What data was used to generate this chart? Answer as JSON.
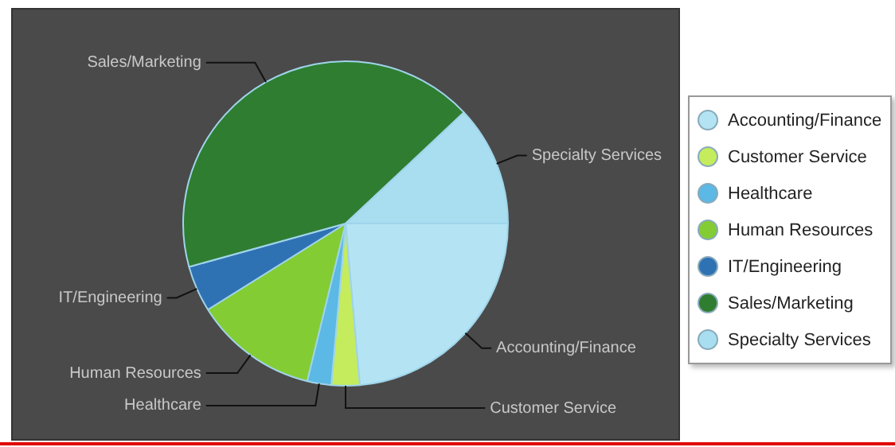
{
  "chart_data": {
    "type": "pie",
    "categories": [
      "Accounting/Finance",
      "Customer Service",
      "Healthcare",
      "Human Resources",
      "IT/Engineering",
      "Sales/Marketing",
      "Specialty Services"
    ],
    "values": [
      23.6,
      2.8,
      2.4,
      12.3,
      4.6,
      42.3,
      12
    ],
    "colors": [
      "#b4e4f4",
      "#c4ec5c",
      "#5cb8e4",
      "#84cc34",
      "#2f72b4",
      "#2f7d31",
      "#a8def0"
    ],
    "legend": "right"
  }
}
